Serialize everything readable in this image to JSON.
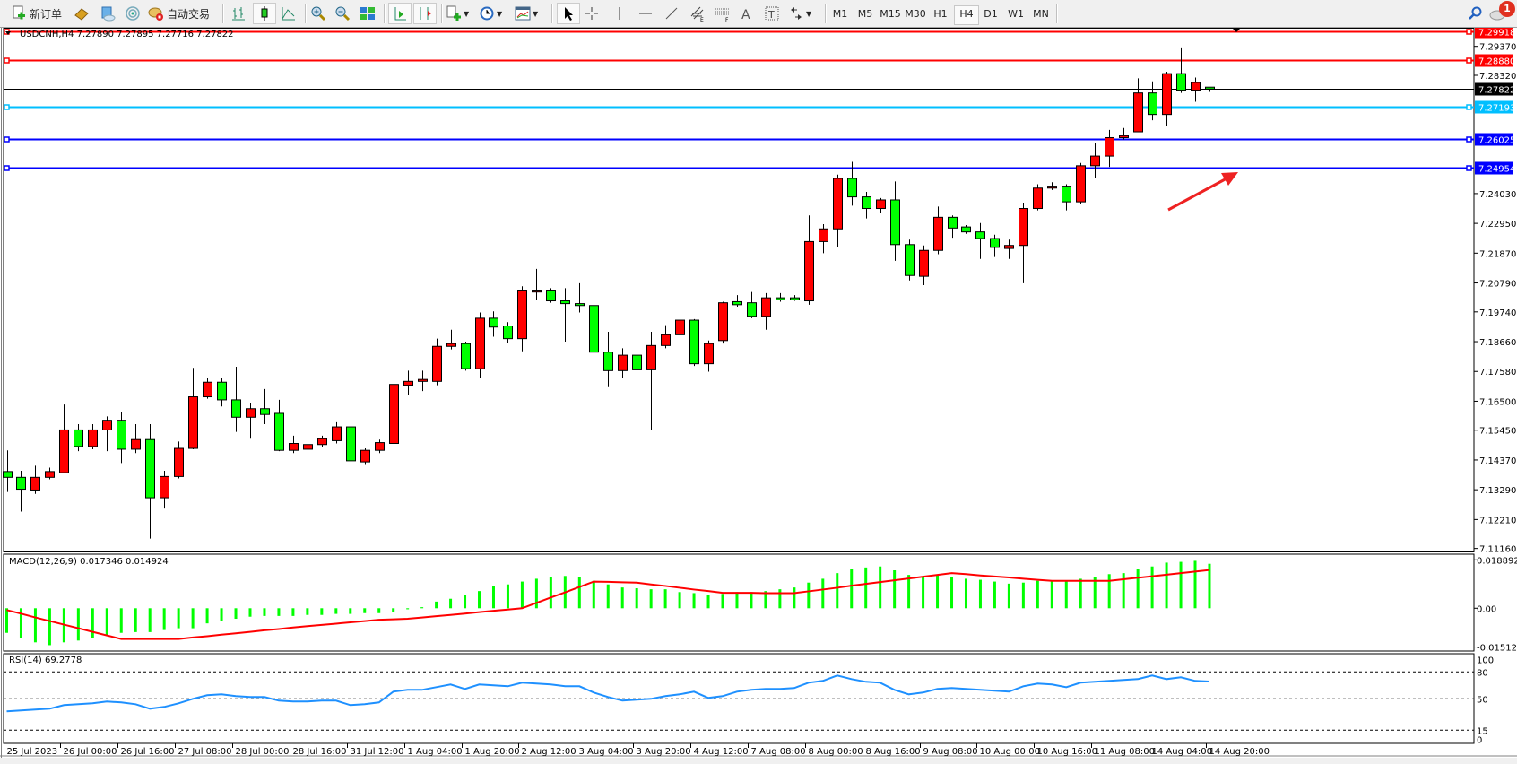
{
  "toolbar": {
    "new_order_label": "新订单",
    "auto_trade_label": "自动交易",
    "timeframes": [
      "M1",
      "M5",
      "M15",
      "M30",
      "H1",
      "H4",
      "D1",
      "W1",
      "MN"
    ],
    "active_timeframe": "H4",
    "notification_count": "1",
    "icons": [
      "new-order-icon",
      "navigator-icon",
      "terminal-icon",
      "signals-icon",
      "auto-trade-icon",
      "bar-chart-icon",
      "candlestick-icon",
      "line-chart-icon",
      "zoom-in-icon",
      "zoom-out-icon",
      "tile-windows-icon",
      "autoscroll-icon",
      "chart-shift-icon",
      "indicators-icon",
      "periods-icon",
      "templates-icon",
      "cursor-icon",
      "crosshair-icon",
      "vertical-line-icon",
      "horizontal-line-icon",
      "trendline-icon",
      "equidistant-channel-icon",
      "fibonacci-icon",
      "text-icon",
      "text-label-icon",
      "arrows-icon",
      "search-icon",
      "notifications-icon"
    ]
  },
  "chart_header": "USDCNH,H4  7.27890 7.27895 7.27716 7.27822",
  "colors": {
    "bull": "#ff0000",
    "bear": "#00ff00",
    "macd_hist": "#00ff00",
    "macd_signal": "#ff0000",
    "rsi": "#1e90ff",
    "resistance": "#ff0000",
    "support": "#0000ff",
    "pivot": "#00bfff",
    "current": "#000000",
    "arrow": "#ee2222"
  },
  "chart_data": [
    {
      "type": "candlestick",
      "symbol": "USDCNH",
      "timeframe": "H4",
      "ylim": [
        7.1105,
        7.3004
      ],
      "grid": false,
      "y_ticks": [
        "7.29370",
        "7.28320",
        "7.24030",
        "7.22950",
        "7.21870",
        "7.20790",
        "7.19740",
        "7.18660",
        "7.17580",
        "7.16500",
        "7.15450",
        "7.14370",
        "7.13290",
        "7.12210",
        "7.11160"
      ],
      "x_labels": [
        "25 Jul 2023",
        "26 Jul 00:00",
        "26 Jul 16:00",
        "27 Jul 08:00",
        "28 Jul 00:00",
        "28 Jul 16:00",
        "31 Jul 12:00",
        "1 Aug 04:00",
        "1 Aug 20:00",
        "2 Aug 12:00",
        "3 Aug 04:00",
        "3 Aug 20:00",
        "4 Aug 12:00",
        "7 Aug 08:00",
        "8 Aug 00:00",
        "8 Aug 16:00",
        "9 Aug 08:00",
        "10 Aug 00:00",
        "10 Aug 16:00",
        "11 Aug 08:00",
        "14 Aug 04:00",
        "14 Aug 20:00"
      ],
      "ohlc_fields": [
        "open",
        "high",
        "low",
        "close"
      ],
      "ohlc": [
        [
          7.1395,
          7.1472,
          7.1321,
          7.1374
        ],
        [
          7.1374,
          7.1398,
          7.125,
          7.1331
        ],
        [
          7.1328,
          7.1416,
          7.1314,
          7.1374
        ],
        [
          7.1374,
          7.1409,
          7.1367,
          7.1395
        ],
        [
          7.1391,
          7.1638,
          7.1391,
          7.1546
        ],
        [
          7.1546,
          7.1567,
          7.1469,
          7.1486
        ],
        [
          7.1486,
          7.1567,
          7.1476,
          7.1546
        ],
        [
          7.1546,
          7.1595,
          7.1469,
          7.1581
        ],
        [
          7.1581,
          7.1609,
          7.1426,
          7.1476
        ],
        [
          7.1476,
          7.1567,
          7.1462,
          7.1511
        ],
        [
          7.1511,
          7.1567,
          7.1152,
          7.13
        ],
        [
          7.13,
          7.1398,
          7.1261,
          7.1377
        ],
        [
          7.1377,
          7.1504,
          7.137,
          7.1479
        ],
        [
          7.1479,
          7.1771,
          7.1476,
          7.1666
        ],
        [
          7.1666,
          7.1736,
          7.1659,
          7.1719
        ],
        [
          7.1719,
          7.1736,
          7.1631,
          7.1655
        ],
        [
          7.1655,
          7.1775,
          7.1539,
          7.1592
        ],
        [
          7.1592,
          7.1645,
          7.1514,
          7.1623
        ],
        [
          7.1623,
          7.1694,
          7.1567,
          7.1602
        ],
        [
          7.1606,
          7.1655,
          7.1469,
          7.1472
        ],
        [
          7.1472,
          7.1525,
          7.1462,
          7.1497
        ],
        [
          7.1476,
          7.1497,
          7.1328,
          7.1493
        ],
        [
          7.1493,
          7.1525,
          7.1483,
          7.1514
        ],
        [
          7.1507,
          7.1574,
          7.1497,
          7.1557
        ],
        [
          7.1557,
          7.1567,
          7.1426,
          7.1434
        ],
        [
          7.143,
          7.1479,
          7.1419,
          7.1472
        ],
        [
          7.1472,
          7.1511,
          7.1462,
          7.15
        ],
        [
          7.1497,
          7.1743,
          7.1479,
          7.1711
        ],
        [
          7.1708,
          7.1761,
          7.1673,
          7.1722
        ],
        [
          7.1722,
          7.1761,
          7.1687,
          7.1729
        ],
        [
          7.1722,
          7.1877,
          7.1708,
          7.1849
        ],
        [
          7.1849,
          7.1909,
          7.1838,
          7.1859
        ],
        [
          7.1859,
          7.1866,
          7.1761,
          7.1768
        ],
        [
          7.1768,
          7.1972,
          7.1736,
          7.1951
        ],
        [
          7.1951,
          7.1976,
          7.1884,
          7.1919
        ],
        [
          7.1923,
          7.1937,
          7.1863,
          7.1877
        ],
        [
          7.1877,
          7.2067,
          7.1831,
          7.2053
        ],
        [
          7.2046,
          7.213,
          7.2018,
          7.2053
        ],
        [
          7.2053,
          7.206,
          7.2007,
          7.2014
        ],
        [
          7.2014,
          7.206,
          7.1866,
          7.2004
        ],
        [
          7.2004,
          7.2078,
          7.1972,
          7.1997
        ],
        [
          7.1997,
          7.2032,
          7.1778,
          7.1828
        ],
        [
          7.1828,
          7.1902,
          7.1701,
          7.1761
        ],
        [
          7.1761,
          7.1842,
          7.1736,
          7.1817
        ],
        [
          7.1817,
          7.1842,
          7.1743,
          7.1764
        ],
        [
          7.1764,
          7.1902,
          7.1546,
          7.1852
        ],
        [
          7.1852,
          7.1926,
          7.1842,
          7.1891
        ],
        [
          7.1891,
          7.1955,
          7.1877,
          7.1944
        ],
        [
          7.1944,
          7.1948,
          7.1778,
          7.1786
        ],
        [
          7.1786,
          7.187,
          7.1757,
          7.1859
        ],
        [
          7.187,
          7.2011,
          7.1859,
          7.2007
        ],
        [
          7.2011,
          7.2035,
          7.1993,
          7.2
        ],
        [
          7.2007,
          7.2046,
          7.1951,
          7.1958
        ],
        [
          7.1958,
          7.2042,
          7.1909,
          7.2025
        ],
        [
          7.2025,
          7.2042,
          7.2011,
          7.2018
        ],
        [
          7.2025,
          7.2035,
          7.2014,
          7.2018
        ],
        [
          7.2014,
          7.2324,
          7.2,
          7.2229
        ],
        [
          7.2229,
          7.2292,
          7.2187,
          7.2275
        ],
        [
          7.2275,
          7.2472,
          7.2208,
          7.2458
        ],
        [
          7.2458,
          7.2518,
          7.2359,
          7.2391
        ],
        [
          7.2391,
          7.2409,
          7.2313,
          7.2349
        ],
        [
          7.2349,
          7.2387,
          7.2334,
          7.238
        ],
        [
          7.238,
          7.2447,
          7.2159,
          7.2218
        ],
        [
          7.2218,
          7.2236,
          7.2088,
          7.2106
        ],
        [
          7.2103,
          7.2215,
          7.2071,
          7.2197
        ],
        [
          7.2197,
          7.2356,
          7.2183,
          7.2317
        ],
        [
          7.2317,
          7.2324,
          7.2243,
          7.2278
        ],
        [
          7.2282,
          7.2289,
          7.2257,
          7.2264
        ],
        [
          7.2264,
          7.2296,
          7.2166,
          7.224
        ],
        [
          7.224,
          7.2254,
          7.2173,
          7.2208
        ],
        [
          7.2204,
          7.2236,
          7.2166,
          7.2215
        ],
        [
          7.2215,
          7.237,
          7.2078,
          7.2349
        ],
        [
          7.2349,
          7.2437,
          7.2342,
          7.2423
        ],
        [
          7.2423,
          7.2444,
          7.2416,
          7.243
        ],
        [
          7.243,
          7.2437,
          7.2342,
          7.2373
        ],
        [
          7.2373,
          7.2514,
          7.2366,
          7.2504
        ],
        [
          7.2504,
          7.2585,
          7.2458,
          7.2539
        ],
        [
          7.2539,
          7.2634,
          7.25,
          7.2606
        ],
        [
          7.2606,
          7.2641,
          7.2599,
          7.2613
        ],
        [
          7.2627,
          7.2821,
          7.2627,
          7.2768
        ],
        [
          7.2768,
          7.281,
          7.2669,
          7.269
        ],
        [
          7.269,
          7.2845,
          7.2648,
          7.2838
        ],
        [
          7.2838,
          7.2933,
          7.2768,
          7.2778
        ],
        [
          7.2778,
          7.2824,
          7.2736,
          7.2806
        ],
        [
          7.2789,
          7.27895,
          7.27716,
          7.27822
        ]
      ],
      "levels": [
        {
          "price": "7.29918",
          "role": "resistance"
        },
        {
          "price": "7.28880",
          "role": "resistance"
        },
        {
          "price": "7.27822",
          "role": "current"
        },
        {
          "price": "7.27193",
          "role": "pivot"
        },
        {
          "price": "7.26025",
          "role": "support"
        },
        {
          "price": "7.24954",
          "role": "support"
        }
      ],
      "annotation": {
        "type": "arrow",
        "direction": "up-right"
      }
    },
    {
      "type": "bar+line",
      "title": "MACD(12,26,9) 0.017346 0.014924",
      "ylim": [
        -0.0169,
        0.0206
      ],
      "y_ticks": [
        "0.018892",
        "0.00",
        "-0.015125"
      ],
      "histogram": [
        -0.0096,
        -0.0115,
        -0.0133,
        -0.0144,
        -0.0133,
        -0.0126,
        -0.0115,
        -0.0107,
        -0.0096,
        -0.0093,
        -0.0093,
        -0.0085,
        -0.0078,
        -0.0078,
        -0.0059,
        -0.0048,
        -0.0041,
        -0.0033,
        -0.003,
        -0.003,
        -0.003,
        -0.0026,
        -0.0026,
        -0.0022,
        -0.0022,
        -0.0019,
        -0.0019,
        -0.0015,
        -0.0004,
        0.0004,
        0.0026,
        0.0037,
        0.0052,
        0.0067,
        0.0085,
        0.0093,
        0.0104,
        0.0115,
        0.0122,
        0.0126,
        0.0122,
        0.0107,
        0.0093,
        0.0081,
        0.0078,
        0.0074,
        0.0074,
        0.0063,
        0.0059,
        0.0052,
        0.0056,
        0.0063,
        0.0063,
        0.0067,
        0.0074,
        0.0081,
        0.01,
        0.0115,
        0.0137,
        0.0152,
        0.0159,
        0.0163,
        0.0148,
        0.013,
        0.0122,
        0.013,
        0.0122,
        0.0115,
        0.0111,
        0.0104,
        0.0096,
        0.01,
        0.0107,
        0.0107,
        0.0107,
        0.0115,
        0.0122,
        0.0133,
        0.0137,
        0.0155,
        0.0163,
        0.0178,
        0.0181,
        0.0185,
        0.017346
      ],
      "signal": [
        -0.0007,
        -0.0021,
        -0.0036,
        -0.005,
        -0.0064,
        -0.0078,
        -0.0092,
        -0.0106,
        -0.012,
        -0.012,
        -0.012,
        -0.012,
        -0.012,
        -0.0114,
        -0.0109,
        -0.0103,
        -0.0098,
        -0.0092,
        -0.0086,
        -0.0081,
        -0.0075,
        -0.007,
        -0.0065,
        -0.006,
        -0.0055,
        -0.005,
        -0.0045,
        -0.0043,
        -0.0041,
        -0.0036,
        -0.0031,
        -0.0026,
        -0.0021,
        -0.0015,
        -0.001,
        -0.0005,
        0.0,
        0.0021,
        0.0042,
        0.0062,
        0.0083,
        0.0104,
        0.0103,
        0.0101,
        0.01,
        0.0093,
        0.0087,
        0.008,
        0.0073,
        0.0067,
        0.006,
        0.006,
        0.006,
        0.0059,
        0.0059,
        0.0059,
        0.0066,
        0.0073,
        0.008,
        0.0088,
        0.0095,
        0.0102,
        0.0109,
        0.0116,
        0.0123,
        0.013,
        0.0137,
        0.0133,
        0.0128,
        0.0124,
        0.012,
        0.0115,
        0.0111,
        0.0107,
        0.0107,
        0.0107,
        0.0107,
        0.0107,
        0.0113,
        0.0119,
        0.0125,
        0.0131,
        0.0137,
        0.0143,
        0.014924
      ]
    },
    {
      "type": "line",
      "title": "RSI(14) 69.2778",
      "ylim": [
        0,
        100
      ],
      "y_ticks": [
        "100",
        "80",
        "50",
        "15",
        "0"
      ],
      "reference_lines": [
        80,
        50,
        15
      ],
      "values": [
        36,
        37,
        38,
        39,
        43,
        44,
        45,
        47,
        46,
        44,
        39,
        41,
        45,
        50,
        54,
        55,
        53,
        52,
        52,
        48,
        47,
        47,
        48,
        48,
        43,
        44,
        46,
        58,
        60,
        60,
        63,
        66,
        61,
        66,
        65,
        64,
        68,
        67,
        66,
        64,
        64,
        57,
        52,
        48,
        49,
        50,
        53,
        55,
        58,
        51,
        53,
        58,
        60,
        61,
        61,
        62,
        68,
        70,
        76,
        72,
        69,
        68,
        60,
        55,
        57,
        61,
        62,
        61,
        60,
        59,
        58,
        64,
        67,
        66,
        63,
        68,
        69,
        70,
        71,
        72,
        76,
        72,
        74,
        70,
        69.2778
      ]
    }
  ]
}
